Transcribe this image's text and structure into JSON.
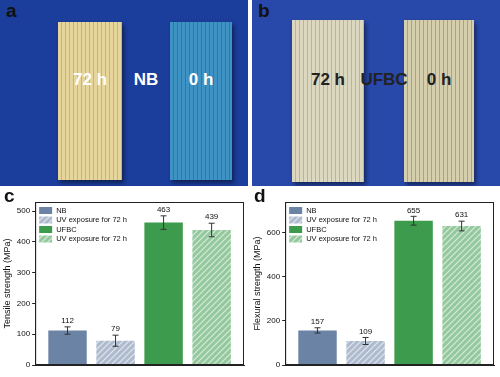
{
  "photos": [
    {
      "label": "a",
      "texts": [
        "72 h",
        "NB",
        "0 h"
      ]
    },
    {
      "label": "b",
      "texts": [
        "72 h",
        "UFBC",
        "0 h"
      ]
    }
  ],
  "chart_data": [
    {
      "type": "bar",
      "annotations": [
        "c"
      ],
      "y_label": "Tensile strength (MPa)",
      "categories": [
        null
      ],
      "series": [
        {
          "name": "NB",
          "color": "#6b84a6",
          "values": [
            112
          ],
          "errors": [
            12
          ]
        },
        {
          "name": "UV exposure for 72 h",
          "color": "#6b84a6",
          "values": [
            79
          ],
          "errors": [
            18
          ]
        },
        {
          "name": "UFBC",
          "color": "#3c9b4c",
          "values": [
            463
          ],
          "errors": [
            22
          ]
        },
        {
          "name": "UV exposure for 72 h",
          "color": "#3c9b4c",
          "values": [
            439
          ],
          "errors": [
            22
          ]
        }
      ],
      "ylim": [
        0,
        530
      ],
      "yticks": [
        0,
        100,
        200,
        300,
        400,
        500
      ],
      "grid": false,
      "legend": "upper left",
      "data_labels": true,
      "tick_labels": "y"
    },
    {
      "type": "bar",
      "annotations": [
        "d"
      ],
      "y_label": "Flexural strength (MPa)",
      "categories": [
        null
      ],
      "series": [
        {
          "name": "NB",
          "color": "#6b84a6",
          "values": [
            157
          ],
          "errors": [
            12
          ]
        },
        {
          "name": "UV exposure for 72 h",
          "color": "#6b84a6",
          "values": [
            109
          ],
          "errors": [
            16
          ]
        },
        {
          "name": "UFBC",
          "color": "#3c9b4c",
          "values": [
            655
          ],
          "errors": [
            20
          ]
        },
        {
          "name": "UV exposure for 72 h",
          "color": "#3c9b4c",
          "values": [
            631
          ],
          "errors": [
            22
          ]
        }
      ],
      "ylim": [
        0,
        740
      ],
      "yticks": [
        0,
        200,
        400,
        600
      ],
      "grid": false,
      "legend": "upper left",
      "data_labels": true,
      "tick_labels": "y"
    }
  ]
}
